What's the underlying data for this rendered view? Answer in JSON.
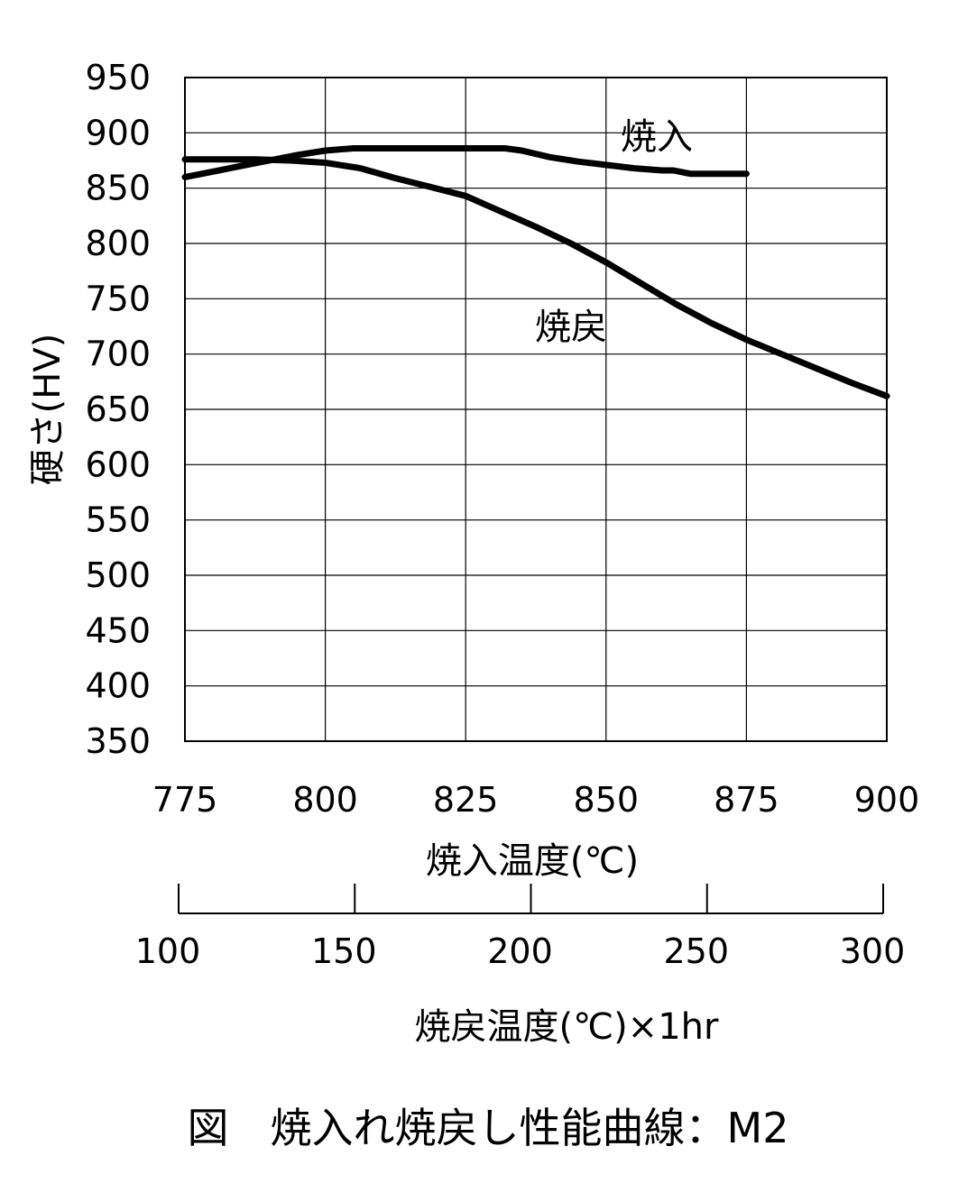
{
  "chart_data": {
    "type": "line",
    "caption": "図　焼入れ焼戻し性能曲線：M2",
    "ylabel": "硬さ(HV)",
    "xlabel": "焼入温度(℃)",
    "x2label": "焼戻温度(℃)×1hr",
    "ylim": [
      350,
      950
    ],
    "yticks": [
      950,
      900,
      850,
      800,
      750,
      700,
      650,
      600,
      550,
      500,
      450,
      400,
      350
    ],
    "xlim": [
      775,
      900
    ],
    "xticks": [
      775,
      800,
      825,
      850,
      875,
      900
    ],
    "x2lim": [
      100,
      300
    ],
    "x2ticks": [
      100,
      150,
      200,
      250,
      300
    ],
    "grid": true,
    "series": [
      {
        "name": "焼入",
        "axis": "x",
        "x": [
          775,
          780,
          785,
          790,
          795,
          800,
          805,
          810,
          815,
          820,
          825,
          830,
          832,
          835,
          840,
          845,
          850,
          855,
          860,
          862,
          865,
          870,
          875
        ],
        "y": [
          860,
          865,
          870,
          875,
          880,
          884,
          886,
          886,
          886,
          886,
          886,
          886,
          886,
          884,
          878,
          874,
          871,
          868,
          866,
          866,
          863,
          863,
          863
        ]
      },
      {
        "name": "焼戻",
        "axis": "x2",
        "x": [
          100,
          110,
          120,
          130,
          140,
          150,
          160,
          170,
          180,
          190,
          200,
          210,
          220,
          230,
          240,
          250,
          260,
          270,
          280,
          290,
          300
        ],
        "y": [
          876,
          876,
          876,
          875,
          873,
          868,
          859,
          851,
          843,
          829,
          815,
          800,
          783,
          764,
          745,
          728,
          713,
          700,
          687,
          674,
          662
        ]
      }
    ]
  }
}
